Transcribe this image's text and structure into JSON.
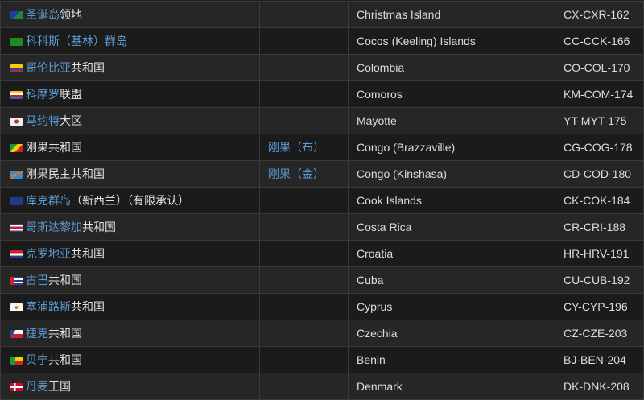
{
  "colors": {
    "link": "#5b9bd5",
    "text": "#e2e2e2",
    "row_odd": "#262626",
    "row_even": "#1b1b1b",
    "border": "#3a3a3a"
  },
  "rows": [
    {
      "flag": "christmas-island-flag",
      "flag_css": "linear-gradient(135deg,#1f3fa8 50%,#1c8a3a 50%)",
      "name_link": "圣诞岛",
      "name_plain": "领地",
      "alt": "",
      "english": "Christmas Island",
      "code": "CX-CXR-162"
    },
    {
      "flag": "cocos-islands-flag",
      "flag_css": "#1f8a1f",
      "name_link": "科科斯（基林）群岛",
      "name_plain": "",
      "alt": "",
      "english": "Cocos (Keeling) Islands",
      "code": "CC-CCK-166"
    },
    {
      "flag": "colombia-flag",
      "flag_css": "linear-gradient(#f5d000 50%,#2a4aa0 50%,#2a4aa0 75%,#d0202a 75%)",
      "name_link": "哥伦比亚",
      "name_plain": "共和国",
      "alt": "",
      "english": "Colombia",
      "code": "CO-COL-170"
    },
    {
      "flag": "comoros-flag",
      "flag_css": "linear-gradient(#f5d000 25%,#fff 25%,#fff 50%,#d0202a 50%,#d0202a 75%,#3a60c0 75%)",
      "name_link": "科摩罗",
      "name_plain": "联盟",
      "alt": "",
      "english": "Comoros",
      "code": "KM-COM-174"
    },
    {
      "flag": "mayotte-flag",
      "flag_css": "radial-gradient(circle,#c03030 25%,#f0f0f0 30%)",
      "name_link": "马约特",
      "name_plain": "大区",
      "alt": "",
      "english": "Mayotte",
      "code": "YT-MYT-175"
    },
    {
      "flag": "congo-flag",
      "flag_css": "linear-gradient(135deg,#1a9a3a 35%,#f5d000 35%,#f5d000 62%,#d0202a 62%)",
      "name_link": "",
      "name_plain": "刚果共和国",
      "alt": "刚果（布）",
      "english": "Congo (Brazzaville)",
      "code": "CG-COG-178"
    },
    {
      "flag": "dr-congo-flag",
      "flag_css": "linear-gradient(150deg,#2f8ae0 40%,#f5d000 40%,#d0202a 48%,#f5d000 56%,#2f8ae0 56%)",
      "name_link": "",
      "name_plain": "刚果民主共和国",
      "alt": "刚果（金）",
      "english": "Congo (Kinshasa)",
      "code": "CD-COD-180"
    },
    {
      "flag": "cook-islands-flag",
      "flag_css": "#1f3a8a",
      "name_link": "库克群岛",
      "name_plain": "（新西兰）（有限承认）",
      "alt": "",
      "english": "Cook Islands",
      "code": "CK-COK-184"
    },
    {
      "flag": "costa-rica-flag",
      "flag_css": "linear-gradient(#2a3f90 17%,#fff 17%,#fff 33%,#d0202a 33%,#d0202a 67%,#fff 67%,#fff 83%,#2a3f90 83%)",
      "name_link": "哥斯达黎加",
      "name_plain": "共和国",
      "alt": "",
      "english": "Costa Rica",
      "code": "CR-CRI-188"
    },
    {
      "flag": "croatia-flag",
      "flag_css": "linear-gradient(#d0202a 33%,#fff 33%,#fff 67%,#2a3f90 67%)",
      "name_link": "克罗地亚",
      "name_plain": "共和国",
      "alt": "",
      "english": "Croatia",
      "code": "HR-HRV-191"
    },
    {
      "flag": "cuba-flag",
      "flag_css": "linear-gradient(90deg,#d0202a 30%,transparent 30%),repeating-linear-gradient(#2a3f90 0 2px,#fff 2px 4px)",
      "name_link": "古巴",
      "name_plain": "共和国",
      "alt": "",
      "english": "Cuba",
      "code": "CU-CUB-192"
    },
    {
      "flag": "cyprus-flag",
      "flag_css": "radial-gradient(circle,#d08a30 20%,#f4f4f4 25%)",
      "name_link": "塞浦路斯",
      "name_plain": "共和国",
      "alt": "",
      "english": "Cyprus",
      "code": "CY-CYP-196"
    },
    {
      "flag": "czechia-flag",
      "flag_css": "linear-gradient(120deg,#2a4aa0 30%,transparent 30%),linear-gradient(#fff 50%,#d0202a 50%)",
      "name_link": "捷克",
      "name_plain": "共和国",
      "alt": "",
      "english": "Czechia",
      "code": "CZ-CZE-203"
    },
    {
      "flag": "benin-flag",
      "flag_css": "linear-gradient(90deg,#1a9a3a 40%,transparent 40%),linear-gradient(#f5d000 50%,#d0202a 50%)",
      "name_link": "贝宁",
      "name_plain": "共和国",
      "alt": "",
      "english": "Benin",
      "code": "BJ-BEN-204"
    },
    {
      "flag": "denmark-flag",
      "flag_css": "linear-gradient(90deg,transparent 33%,#fff 33%,#fff 45%,transparent 45%),linear-gradient(transparent 40%,#fff 40%,#fff 60%,transparent 60%),#c8102e",
      "name_link": "丹麦",
      "name_plain": "王国",
      "alt": "",
      "english": "Denmark",
      "code": "DK-DNK-208"
    }
  ]
}
